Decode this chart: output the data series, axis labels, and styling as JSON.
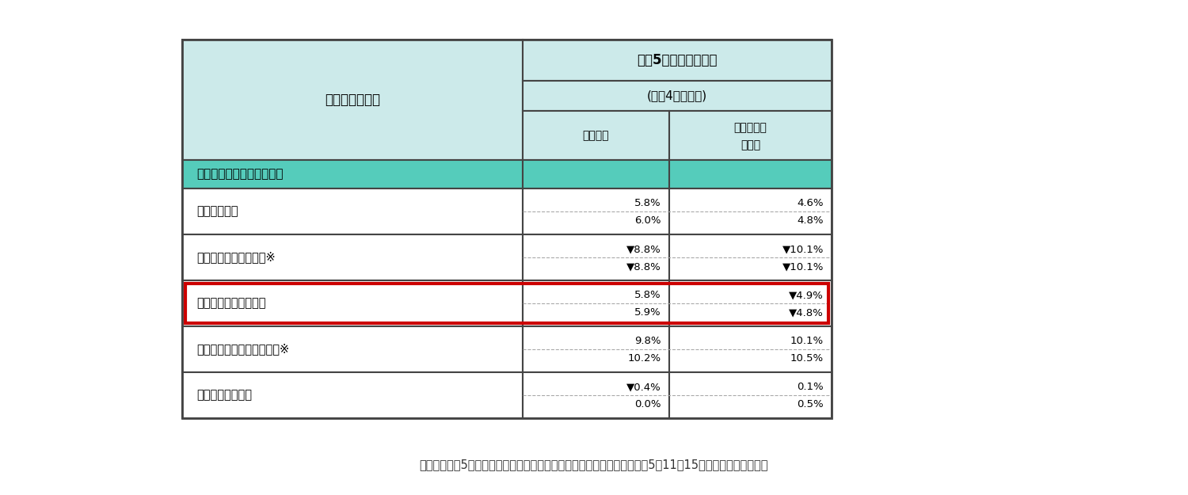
{
  "title_header": "令和5年経営実態調査",
  "sub_header": "(令和4年度決算)",
  "col1_header": "収支差率",
  "col2_header": "対令和元年度増減",
  "service_label": "サービスの種類",
  "category_header": "障害児通所・訪問サービス",
  "rows": [
    {
      "name": "児童発達支援",
      "val1_top": "5.8%",
      "val2_top": "4.6%",
      "val1_bot": "6.0%",
      "val2_bot": "4.8%",
      "highlighted": false
    },
    {
      "name": "医療型児童発達支援　※",
      "val1_top": "▼8.8%",
      "val2_top": "▼10.1%",
      "val1_bot": "▼8.8%",
      "val2_bot": "▼10.1%",
      "highlighted": false
    },
    {
      "name": "放課後等デイサービス",
      "val1_top": "5.8%",
      "val2_top": "▼4.9%",
      "val1_bot": "5.9%",
      "val2_bot": "▼4.8%",
      "highlighted": true
    },
    {
      "name": "居宅訪問型児童発達支援　※",
      "val1_top": "9.8%",
      "val2_top": "10.1%",
      "val1_bot": "10.2%",
      "val2_bot": "10.5%",
      "highlighted": false
    },
    {
      "name": "保育所等訪問支援",
      "val1_top": "▼0.4%",
      "val2_top": "0.1%",
      "val1_bot": "0.0%",
      "val2_bot": "0.5%",
      "highlighted": false
    }
  ],
  "footnote": "出典：「令和5年障害福祉サービス等経営実態調査結果の概要」　（令和5年11月15日）　｜こども家庭庁",
  "header_bg": "#cceaea",
  "category_bg": "#55ccbb",
  "highlight_border": "#cc0000",
  "table_border": "#444444",
  "footnote_color": "#333333"
}
